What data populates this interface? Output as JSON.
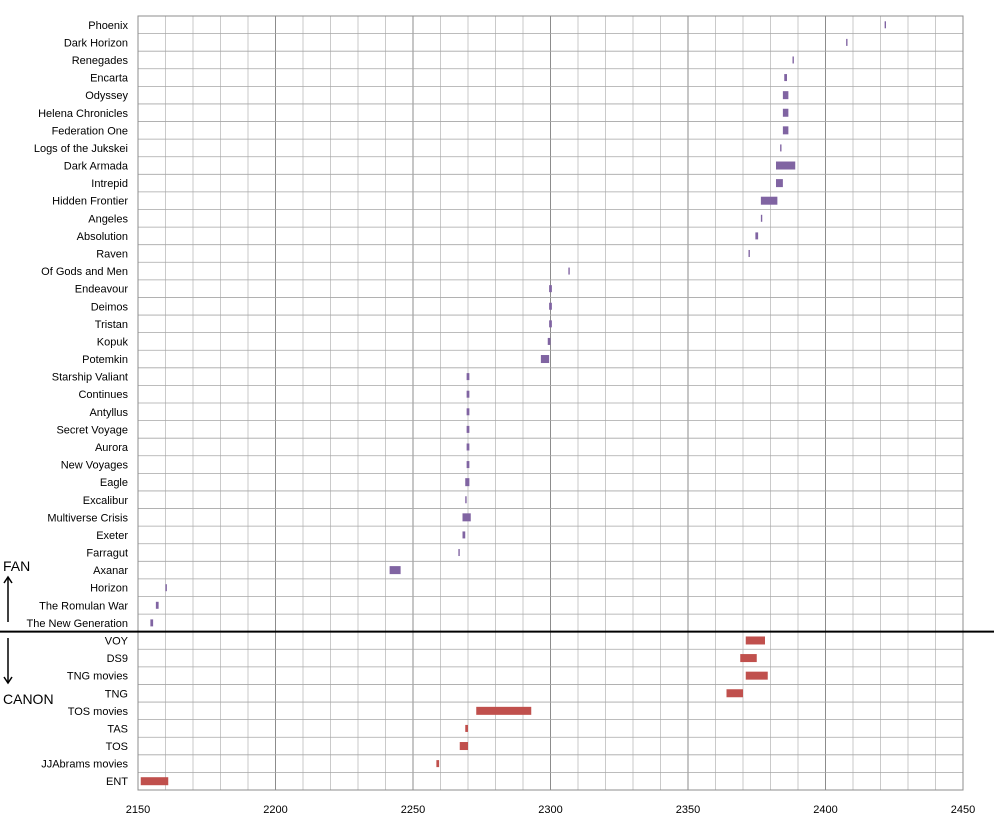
{
  "chart_data": {
    "type": "bar",
    "orientation": "horizontal-floating",
    "xlim": [
      2150,
      2450
    ],
    "x_ticks": [
      2150,
      2200,
      2250,
      2300,
      2350,
      2400,
      2450
    ],
    "grid": true,
    "fan_label": "FAN",
    "canon_label": "CANON",
    "colors": {
      "fan": "#8064a2",
      "canon": "#c0504d",
      "grid": "#a6a6a6",
      "divider": "#000000"
    },
    "categories": [
      "Phoenix",
      "Dark Horizon",
      "Renegades",
      "Encarta",
      "Odyssey",
      "Helena Chronicles",
      "Federation One",
      "Logs of the Jukskei",
      "Dark Armada",
      "Intrepid",
      "Hidden Frontier",
      "Angeles",
      "Absolution",
      "Raven",
      "Of Gods and Men",
      "Endeavour",
      "Deimos",
      "Tristan",
      "Kopuk",
      "Potemkin",
      "Starship Valiant",
      "Continues",
      "Antyllus",
      "Secret Voyage",
      "Aurora",
      "New Voyages",
      "Eagle",
      "Excalibur",
      "Multiverse Crisis",
      "Exeter",
      "Farragut",
      "Axanar",
      "Horizon",
      "The Romulan  War",
      "The New Generation",
      "VOY",
      "DS9",
      "TNG movies",
      "TNG",
      "TOS movies",
      "TAS",
      "TOS",
      "JJAbrams movies",
      "ENT"
    ],
    "groups": [
      "fan",
      "fan",
      "fan",
      "fan",
      "fan",
      "fan",
      "fan",
      "fan",
      "fan",
      "fan",
      "fan",
      "fan",
      "fan",
      "fan",
      "fan",
      "fan",
      "fan",
      "fan",
      "fan",
      "fan",
      "fan",
      "fan",
      "fan",
      "fan",
      "fan",
      "fan",
      "fan",
      "fan",
      "fan",
      "fan",
      "fan",
      "fan",
      "fan",
      "fan",
      "fan",
      "canon",
      "canon",
      "canon",
      "canon",
      "canon",
      "canon",
      "canon",
      "canon",
      "canon"
    ],
    "ranges": [
      [
        2421.5,
        2422
      ],
      [
        2407.5,
        2408
      ],
      [
        2388,
        2388.5
      ],
      [
        2385,
        2386
      ],
      [
        2384.5,
        2386.5
      ],
      [
        2384.5,
        2386.5
      ],
      [
        2384.5,
        2386.5
      ],
      [
        2383.5,
        2384
      ],
      [
        2382,
        2389
      ],
      [
        2382,
        2384.5
      ],
      [
        2376.5,
        2382.5
      ],
      [
        2376.5,
        2377
      ],
      [
        2374.5,
        2375.5
      ],
      [
        2372,
        2372.5
      ],
      [
        2306.5,
        2307
      ],
      [
        2299.5,
        2300.5
      ],
      [
        2299.5,
        2300.5
      ],
      [
        2299.5,
        2300.5
      ],
      [
        2299,
        2300
      ],
      [
        2296.5,
        2299.5
      ],
      [
        2269.5,
        2270.5
      ],
      [
        2269.5,
        2270.5
      ],
      [
        2269.5,
        2270.5
      ],
      [
        2269.5,
        2270.5
      ],
      [
        2269.5,
        2270.5
      ],
      [
        2269.5,
        2270.5
      ],
      [
        2269,
        2270.5
      ],
      [
        2269,
        2269.5
      ],
      [
        2268,
        2271
      ],
      [
        2268,
        2269
      ],
      [
        2266.5,
        2267
      ],
      [
        2241.5,
        2245.5
      ],
      [
        2160,
        2160.5
      ],
      [
        2156.5,
        2157.5
      ],
      [
        2154.5,
        2155.5
      ],
      [
        2371,
        2378
      ],
      [
        2369,
        2375
      ],
      [
        2371,
        2379
      ],
      [
        2364,
        2370
      ],
      [
        2273,
        2293
      ],
      [
        2269,
        2270
      ],
      [
        2267,
        2270
      ],
      [
        2258.5,
        2259.5
      ],
      [
        2151,
        2161
      ]
    ]
  }
}
